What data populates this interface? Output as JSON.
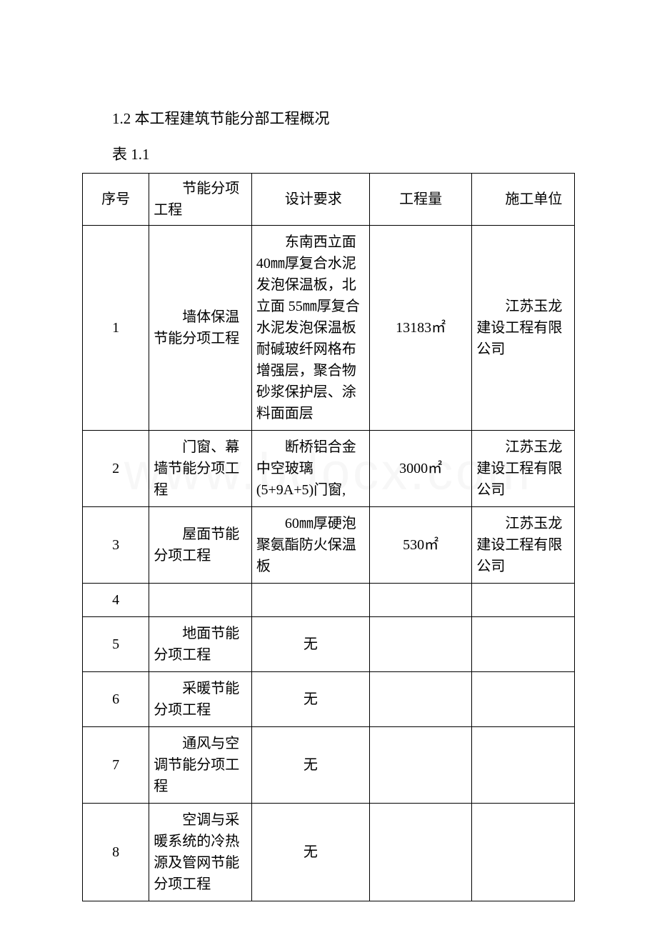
{
  "heading": "1.2 本工程建筑节能分部工程概况",
  "tableLabel": "表 1.1",
  "watermark": "www.bdocx.com",
  "headers": {
    "seq": "序号",
    "item": "节能分项工程",
    "req": "设计要求",
    "qty": "工程量",
    "unit": "施工单位"
  },
  "rows": [
    {
      "seq": "1",
      "item": "墙体保温节能分项工程",
      "req": "东南西立面 40㎜厚复合水泥发泡保温板，北立面 55㎜厚复合水泥发泡保温板耐碱玻纤网格布增强层，聚合物砂浆保护层、涂料面面层",
      "qty": "13183㎡",
      "unit": "江苏玉龙建设工程有限公司"
    },
    {
      "seq": "2",
      "item": "门窗、幕墙节能分项工程",
      "req": "断桥铝合金中空玻璃(5+9A+5)门窗,",
      "qty": "3000㎡",
      "unit": "江苏玉龙建设工程有限公司"
    },
    {
      "seq": "3",
      "item": "屋面节能分项工程",
      "req": "60㎜厚硬泡聚氨酯防火保温板",
      "qty": "530㎡",
      "unit": "江苏玉龙建设工程有限公司"
    },
    {
      "seq": "4",
      "item": "",
      "req": "",
      "qty": "",
      "unit": ""
    },
    {
      "seq": "5",
      "item": "地面节能分项工程",
      "req": "无",
      "qty": "",
      "unit": ""
    },
    {
      "seq": "6",
      "item": "采暖节能分项工程",
      "req": "无",
      "qty": "",
      "unit": ""
    },
    {
      "seq": "7",
      "item": "通风与空调节能分项工程",
      "req": "无",
      "qty": "",
      "unit": ""
    },
    {
      "seq": "8",
      "item": "空调与采暖系统的冷热源及管网节能分项工程",
      "req": "无",
      "qty": "",
      "unit": ""
    }
  ],
  "styling": {
    "page_bg": "#ffffff",
    "text_color": "#000000",
    "border_color": "#000000",
    "watermark_color": "#f0f0f0",
    "heading_fontsize": 21,
    "cell_fontsize": 20,
    "watermark_fontsize": 72,
    "col_widths_pct": [
      13,
      20,
      23,
      20,
      20
    ]
  }
}
